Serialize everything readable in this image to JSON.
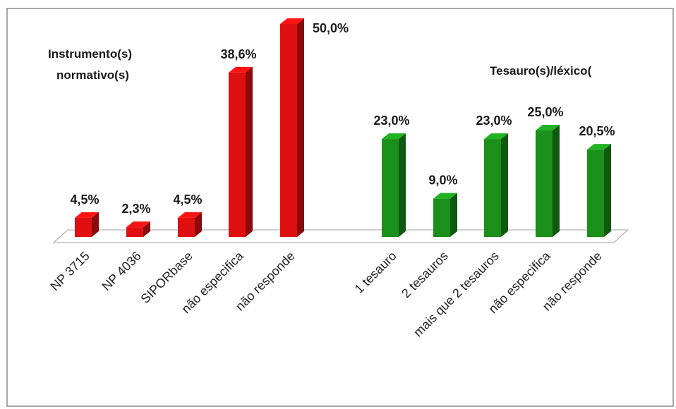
{
  "chart_data": {
    "type": "bar",
    "groups": [
      {
        "title_lines": [
          "Instrumento(s)",
          "normativo(s)"
        ],
        "color": "#e01010",
        "categories": [
          "NP 3715",
          "NP 4036",
          "SIPORbase",
          "não especifica",
          "não responde"
        ],
        "values": [
          4.5,
          2.3,
          4.5,
          38.6,
          50.0
        ],
        "labels": [
          "4,5%",
          "2,3%",
          "4,5%",
          "38,6%",
          "50,0%"
        ]
      },
      {
        "title_lines": [
          "Tesauro(s)/léxico("
        ],
        "color": "#1a8f1a",
        "categories": [
          "1 tesauro",
          "2 tesauros",
          "mais que 2 tesauros",
          "não especifica",
          "não responde"
        ],
        "values": [
          23.0,
          9.0,
          23.0,
          25.0,
          20.5
        ],
        "labels": [
          "23,0%",
          "9,0%",
          "23,0%",
          "25,0%",
          "20,5%"
        ]
      }
    ],
    "ylim": [
      0,
      50
    ],
    "grid": false,
    "legend": "none"
  },
  "colors": {
    "bar_red": "#e01010",
    "bar_green": "#1a8f1a",
    "frame": "#8c8c8c"
  }
}
